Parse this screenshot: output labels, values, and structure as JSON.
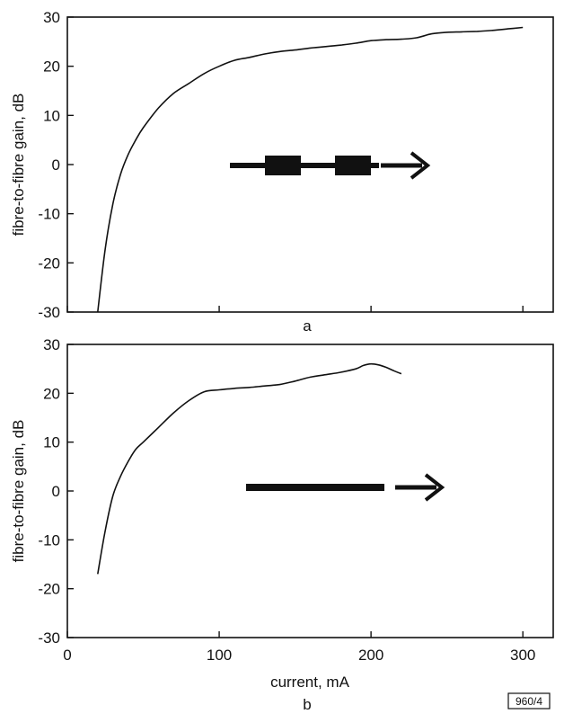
{
  "chart_data": [
    {
      "type": "line",
      "panel_label": "a",
      "xlabel": "",
      "ylabel": "fibre-to-fibre gain, dB",
      "xlim": [
        0,
        320
      ],
      "ylim": [
        -30,
        30
      ],
      "x_ticks": [
        0,
        100,
        200,
        300
      ],
      "y_ticks": [
        30,
        20,
        10,
        0,
        -10,
        -20,
        -30
      ],
      "y_tick_labels": [
        "30",
        "20",
        "10",
        "0",
        "-10",
        "-20",
        "-30"
      ],
      "x_tick_labels_shown": false,
      "grid": false,
      "inset_icon": "arrow-with-two-blocks",
      "series": [
        {
          "x": [
            20,
            25,
            30,
            35,
            40,
            45,
            50,
            60,
            70,
            80,
            90,
            100,
            110,
            120,
            130,
            140,
            150,
            160,
            170,
            180,
            190,
            200,
            210,
            220,
            230,
            240,
            250,
            260,
            270,
            280,
            290,
            300
          ],
          "y": [
            -30,
            -17,
            -8,
            -2,
            2,
            5,
            7.5,
            11.5,
            14.5,
            16.5,
            18.5,
            20,
            21.2,
            21.8,
            22.5,
            23,
            23.3,
            23.7,
            24,
            24.3,
            24.7,
            25.2,
            25.4,
            25.5,
            25.8,
            26.6,
            26.9,
            27,
            27.1,
            27.3,
            27.6,
            27.9
          ]
        }
      ]
    },
    {
      "type": "line",
      "panel_label": "b",
      "xlabel": "current, mA",
      "ylabel": "fibre-to-fibre gain, dB",
      "xlim": [
        0,
        320
      ],
      "ylim": [
        -30,
        30
      ],
      "x_ticks": [
        0,
        100,
        200,
        300
      ],
      "x_tick_labels": [
        "0",
        "100",
        "200",
        "300"
      ],
      "y_ticks": [
        30,
        20,
        10,
        0,
        -10,
        -20,
        -30
      ],
      "y_tick_labels": [
        "30",
        "20",
        "10",
        "0",
        "-10",
        "-20",
        "-30"
      ],
      "grid": false,
      "inset_icon": "arrow-with-solid-bar",
      "series": [
        {
          "x": [
            20,
            25,
            30,
            35,
            40,
            45,
            50,
            60,
            70,
            80,
            90,
            100,
            110,
            120,
            130,
            140,
            150,
            160,
            170,
            180,
            190,
            195,
            200,
            205,
            210,
            215,
            220
          ],
          "y": [
            -17,
            -8,
            -1,
            3,
            6,
            8.5,
            10,
            13,
            16,
            18.5,
            20.3,
            20.7,
            21,
            21.2,
            21.5,
            21.8,
            22.5,
            23.3,
            23.8,
            24.3,
            25,
            25.7,
            26,
            25.8,
            25.3,
            24.6,
            24
          ]
        }
      ]
    }
  ],
  "figure_code": "960/4"
}
